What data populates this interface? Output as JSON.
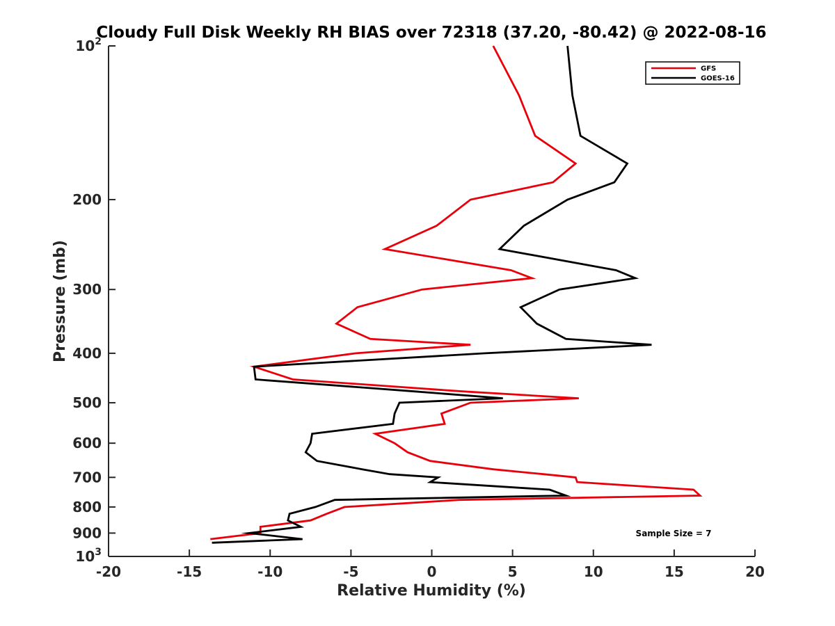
{
  "chart_data": {
    "type": "line",
    "title": "Cloudy Full Disk Weekly RH BIAS over 72318 (37.20, -80.42) @ 2022-08-16",
    "xlabel": "Relative Humidity (%)",
    "ylabel": "Pressure (mb)",
    "xlim": [
      -20,
      20
    ],
    "ylim": [
      100,
      1000
    ],
    "yscale": "log",
    "yreversed": true,
    "xticks": [
      -20,
      -15,
      -10,
      -5,
      0,
      5,
      10,
      15,
      20
    ],
    "xtick_labels": [
      "-20",
      "-15",
      "-10",
      "-5",
      "0",
      "5",
      "10",
      "15",
      "20"
    ],
    "yticks": [
      100,
      200,
      300,
      400,
      500,
      600,
      700,
      800,
      900,
      1000
    ],
    "ytick_labels": [
      {
        "base": "10",
        "exp": "2"
      },
      {
        "text": "200"
      },
      {
        "text": "300"
      },
      {
        "text": "400"
      },
      {
        "text": "500"
      },
      {
        "text": "600"
      },
      {
        "text": "700"
      },
      {
        "text": "800"
      },
      {
        "text": "900"
      },
      {
        "base": "10",
        "exp": "3"
      }
    ],
    "grid": false,
    "legend_position": "top-right",
    "annotation": "Sample Size = 7",
    "series": [
      {
        "name": "GFS",
        "color": "#e8000b",
        "points": [
          [
            3.8,
            100
          ],
          [
            5.4,
            125
          ],
          [
            6.4,
            150
          ],
          [
            8.9,
            170
          ],
          [
            7.5,
            185
          ],
          [
            2.4,
            200
          ],
          [
            0.3,
            225
          ],
          [
            -2.9,
            250
          ],
          [
            4.9,
            275
          ],
          [
            6.2,
            285
          ],
          [
            -0.6,
            300
          ],
          [
            -4.6,
            325
          ],
          [
            -5.9,
            350
          ],
          [
            -3.8,
            375
          ],
          [
            2.4,
            385
          ],
          [
            -4.7,
            400
          ],
          [
            -11.0,
            425
          ],
          [
            -8.6,
            450
          ],
          [
            1.9,
            475
          ],
          [
            9.1,
            490
          ],
          [
            2.4,
            500
          ],
          [
            0.6,
            525
          ],
          [
            0.8,
            550
          ],
          [
            -3.5,
            575
          ],
          [
            -2.3,
            600
          ],
          [
            -1.5,
            625
          ],
          [
            -0.1,
            650
          ],
          [
            3.8,
            675
          ],
          [
            6.9,
            690
          ],
          [
            8.9,
            700
          ],
          [
            9.0,
            715
          ],
          [
            16.2,
            740
          ],
          [
            16.6,
            760
          ],
          [
            1.7,
            775
          ],
          [
            -5.4,
            800
          ],
          [
            -6.5,
            825
          ],
          [
            -7.5,
            850
          ],
          [
            -10.6,
            875
          ],
          [
            -10.6,
            900
          ],
          [
            -13.7,
            925
          ]
        ]
      },
      {
        "name": "GOES-16",
        "color": "#000000",
        "points": [
          [
            8.4,
            100
          ],
          [
            8.7,
            125
          ],
          [
            9.2,
            150
          ],
          [
            12.1,
            170
          ],
          [
            11.3,
            185
          ],
          [
            8.4,
            200
          ],
          [
            5.7,
            225
          ],
          [
            4.2,
            250
          ],
          [
            11.4,
            275
          ],
          [
            12.6,
            285
          ],
          [
            7.9,
            300
          ],
          [
            5.5,
            325
          ],
          [
            6.5,
            350
          ],
          [
            8.3,
            375
          ],
          [
            13.6,
            385
          ],
          [
            3.3,
            400
          ],
          [
            -11.0,
            425
          ],
          [
            -10.9,
            450
          ],
          [
            -1.1,
            475
          ],
          [
            4.4,
            490
          ],
          [
            -2.0,
            500
          ],
          [
            -2.3,
            525
          ],
          [
            -2.4,
            550
          ],
          [
            -7.4,
            575
          ],
          [
            -7.5,
            600
          ],
          [
            -7.8,
            625
          ],
          [
            -7.1,
            650
          ],
          [
            -4.3,
            675
          ],
          [
            -2.6,
            690
          ],
          [
            0.4,
            700
          ],
          [
            -0.1,
            715
          ],
          [
            7.3,
            740
          ],
          [
            8.3,
            760
          ],
          [
            -6.0,
            775
          ],
          [
            -7.2,
            800
          ],
          [
            -8.8,
            825
          ],
          [
            -8.9,
            850
          ],
          [
            -8.1,
            875
          ],
          [
            -11.3,
            900
          ],
          [
            -8.0,
            925
          ],
          [
            -13.6,
            940
          ]
        ]
      }
    ]
  }
}
